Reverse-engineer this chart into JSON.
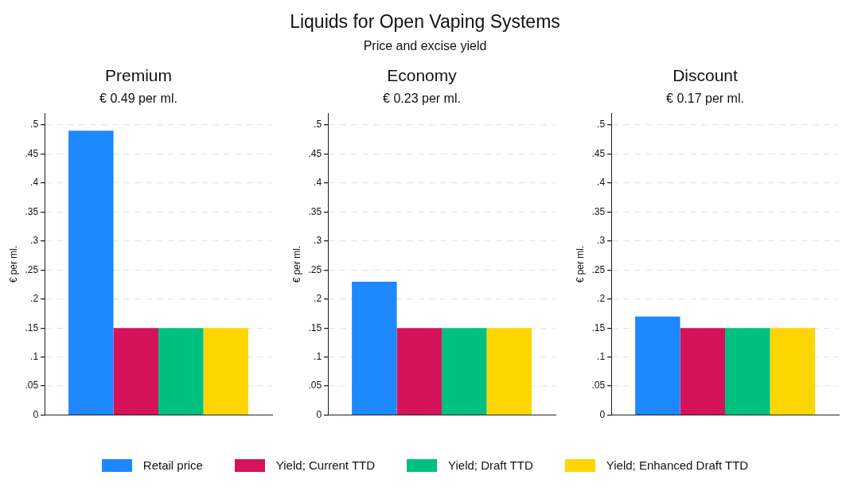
{
  "chart_data": [
    {
      "type": "other",
      "title": "Liquids for Open Vaping Systems",
      "subtitle": "Price and excise yield"
    },
    {
      "type": "bar",
      "title": "Premium",
      "subtitle": "€ 0.49 per ml.",
      "ylabel": "€ per ml.",
      "categories": [
        null
      ],
      "legend": "bottom",
      "grid": "y",
      "ylim": [
        0,
        0.52
      ],
      "yticks": [
        {
          "value": 0,
          "label": "0"
        },
        {
          "value": 0.05,
          "label": ".05"
        },
        {
          "value": 0.1,
          "label": ".1"
        },
        {
          "value": 0.15,
          "label": ".15"
        },
        {
          "value": 0.2,
          "label": ".2"
        },
        {
          "value": 0.25,
          "label": ".25"
        },
        {
          "value": 0.3,
          "label": ".3"
        },
        {
          "value": 0.35,
          "label": ".35"
        },
        {
          "value": 0.4,
          "label": ".4"
        },
        {
          "value": 0.45,
          "label": ".45"
        },
        {
          "value": 0.5,
          "label": ".5"
        }
      ],
      "series": [
        {
          "name": "Retail price",
          "color": "#1e88ff",
          "values": [
            0.49
          ]
        },
        {
          "name": "Yield; Current TTD",
          "color": "#d5135a",
          "values": [
            0.15
          ]
        },
        {
          "name": "Yield; Draft TTD",
          "color": "#00c07f",
          "values": [
            0.15
          ]
        },
        {
          "name": "Yield; Enhanced Draft TTD",
          "color": "#ffd500",
          "values": [
            0.15
          ]
        }
      ]
    },
    {
      "type": "bar",
      "title": "Economy",
      "subtitle": "€ 0.23 per ml.",
      "ylabel": "€ per ml.",
      "categories": [
        null
      ],
      "grid": "y",
      "ylim": [
        0,
        0.52
      ],
      "yticks": [
        {
          "value": 0,
          "label": "0"
        },
        {
          "value": 0.05,
          "label": ".05"
        },
        {
          "value": 0.1,
          "label": ".1"
        },
        {
          "value": 0.15,
          "label": ".15"
        },
        {
          "value": 0.2,
          "label": ".2"
        },
        {
          "value": 0.25,
          "label": ".25"
        },
        {
          "value": 0.3,
          "label": ".3"
        },
        {
          "value": 0.35,
          "label": ".35"
        },
        {
          "value": 0.4,
          "label": ".4"
        },
        {
          "value": 0.45,
          "label": ".45"
        },
        {
          "value": 0.5,
          "label": ".5"
        }
      ],
      "series": [
        {
          "color": "#1e88ff",
          "values": [
            0.23
          ]
        },
        {
          "color": "#d5135a",
          "values": [
            0.15
          ]
        },
        {
          "color": "#00c07f",
          "values": [
            0.15
          ]
        },
        {
          "color": "#ffd500",
          "values": [
            0.15
          ]
        }
      ]
    },
    {
      "type": "bar",
      "title": "Discount",
      "subtitle": "€ 0.17 per ml.",
      "ylabel": "€ per ml.",
      "categories": [
        null
      ],
      "grid": "y",
      "ylim": [
        0,
        0.52
      ],
      "yticks": [
        {
          "value": 0,
          "label": "0"
        },
        {
          "value": 0.05,
          "label": ".05"
        },
        {
          "value": 0.1,
          "label": ".1"
        },
        {
          "value": 0.15,
          "label": ".15"
        },
        {
          "value": 0.2,
          "label": ".2"
        },
        {
          "value": 0.25,
          "label": ".25"
        },
        {
          "value": 0.3,
          "label": ".3"
        },
        {
          "value": 0.35,
          "label": ".35"
        },
        {
          "value": 0.4,
          "label": ".4"
        },
        {
          "value": 0.45,
          "label": ".45"
        },
        {
          "value": 0.5,
          "label": ".5"
        }
      ],
      "series": [
        {
          "color": "#1e88ff",
          "values": [
            0.17
          ]
        },
        {
          "color": "#d5135a",
          "values": [
            0.15
          ]
        },
        {
          "color": "#00c07f",
          "values": [
            0.15
          ]
        },
        {
          "color": "#ffd500",
          "values": [
            0.15
          ]
        }
      ]
    }
  ]
}
